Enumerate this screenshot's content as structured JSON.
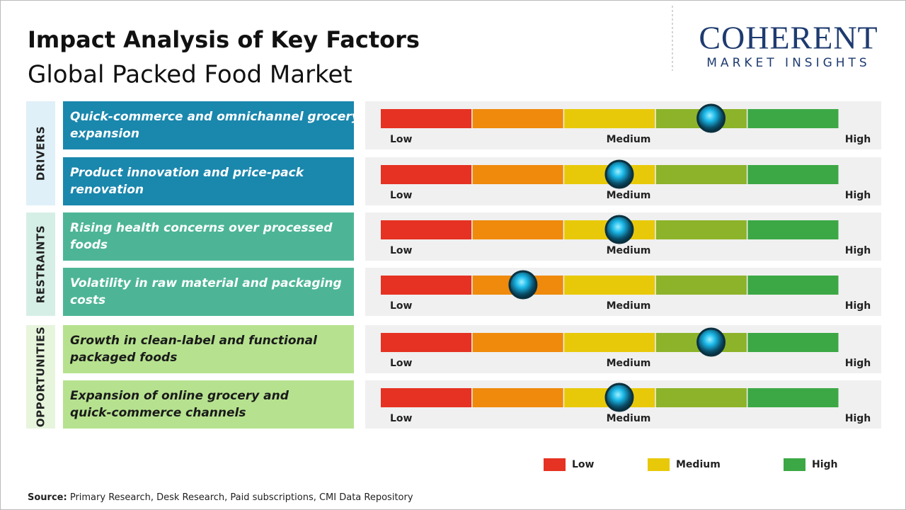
{
  "header": {
    "title": "Impact Analysis of Key Factors",
    "subtitle": "Global Packed Food Market"
  },
  "logo": {
    "name": "COHERENT",
    "tagline": "MARKET INSIGHTS"
  },
  "scale": {
    "low": "Low",
    "medium": "Medium",
    "high": "High",
    "min": 0,
    "max": 100
  },
  "groups": [
    {
      "label": "DRIVERS",
      "factors": [
        {
          "text": "Quick-commerce and omnichannel grocery expansion",
          "impact": 72
        },
        {
          "text": "Product innovation and price-pack renovation",
          "impact": 52
        }
      ]
    },
    {
      "label": "RESTRAINTS",
      "factors": [
        {
          "text": "Rising health concerns over processed foods",
          "impact": 52
        },
        {
          "text": "Volatility in raw material and packaging costs",
          "impact": 31
        }
      ]
    },
    {
      "label": "OPPORTUNITIES",
      "factors": [
        {
          "text": "Growth in clean-label and functional packaged foods",
          "impact": 72
        },
        {
          "text": "Expansion of online grocery and quick-commerce channels",
          "impact": 52
        }
      ]
    }
  ],
  "legend": [
    "Low",
    "Medium",
    "High"
  ],
  "source": {
    "label": "Source:",
    "text": "Primary Research, Desk Research, Paid subscriptions, CMI Data Repository"
  }
}
